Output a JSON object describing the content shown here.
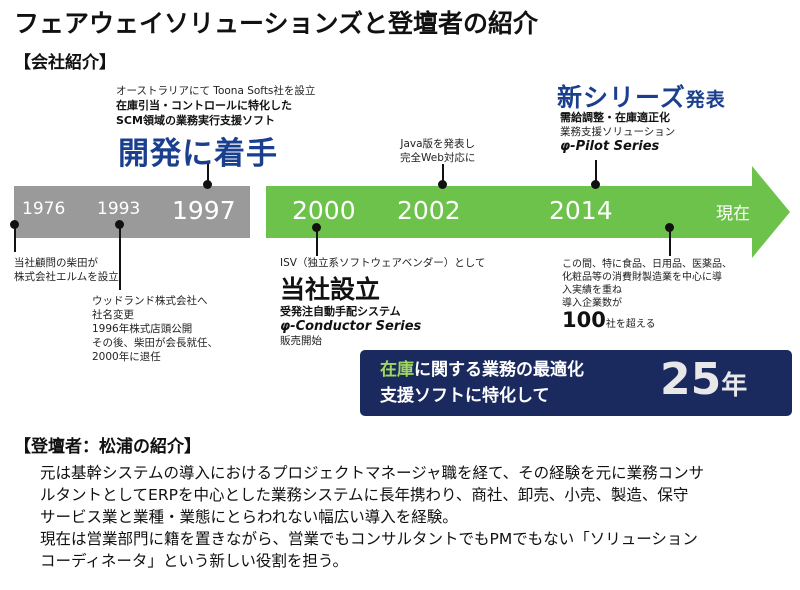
{
  "title": "フェアウェイソリューションズと登壇者の紹介",
  "company_section": "【会社紹介】",
  "timeline": {
    "years": [
      "1976",
      "1993",
      "1997",
      "2000",
      "2002",
      "2014"
    ],
    "now_label": "現在",
    "colors": {
      "gray_band": "#9a9a9a",
      "green_arrow": "#6cc24a",
      "banner": "#1b2a5e",
      "heading_blue": "#1b3f8f"
    }
  },
  "event_1976": {
    "line1": "当社顧問の柴田が",
    "line2": "株式会社エルムを設立"
  },
  "event_1993": {
    "line1": "ウッドランド株式会社へ",
    "line2": "社名変更",
    "line3": "1996年株式店頭公開",
    "line4": "その後、柴田が会長就任、",
    "line5": "2000年に退任"
  },
  "event_1997": {
    "line1": "オーストラリアにて Toona Softs社を設立",
    "line2": "在庫引当・コントロールに特化した",
    "line3": "SCM領域の業務実行支援ソフト",
    "heading": "開発に着手"
  },
  "event_2000": {
    "line1": "ISV（独立系ソフトウェアベンダー）として",
    "heading": "当社設立",
    "line2": "受発注自動手配システム",
    "series": "-Conductor Series",
    "line3": "販売開始"
  },
  "event_2002": {
    "line1": "Java版を発表し",
    "line2": "完全Web対応に"
  },
  "event_2014": {
    "heading_a": "新シリーズ",
    "heading_b": "発表",
    "line1": "需給調整・在庫適正化",
    "line2": "業務支援ソリューション",
    "series": "-Pilot Series"
  },
  "event_now": {
    "line1": "この間、特に食品、日用品、医薬品、",
    "line2": "化粧品等の消費財製造業を中心に導",
    "line3": "入実績を重ね",
    "line4": "導入企業数が",
    "count": "100",
    "count_suffix": "社を超える"
  },
  "series_symbol": "φ",
  "banner": {
    "hl": "在庫",
    "line1_rest": "に関する業務の最適化",
    "line2": "支援ソフトに特化して",
    "number": "25",
    "unit": "年"
  },
  "speaker_section": "【登壇者：松浦の紹介】",
  "speaker_text": [
    "元は基幹システムの導入におけるプロジェクトマネージャ職を経て、その経験を元に業務コンサ",
    "ルタントとしてERPを中心とした業務システムに長年携わり、商社、卸売、小売、製造、保守",
    "サービス業と業種・業態にとらわれない幅広い導入を経験。",
    "現在は営業部門に籍を置きながら、営業でもコンサルタントでもPMでもない「ソリューション",
    "コーディネータ」という新しい役割を担う。"
  ]
}
